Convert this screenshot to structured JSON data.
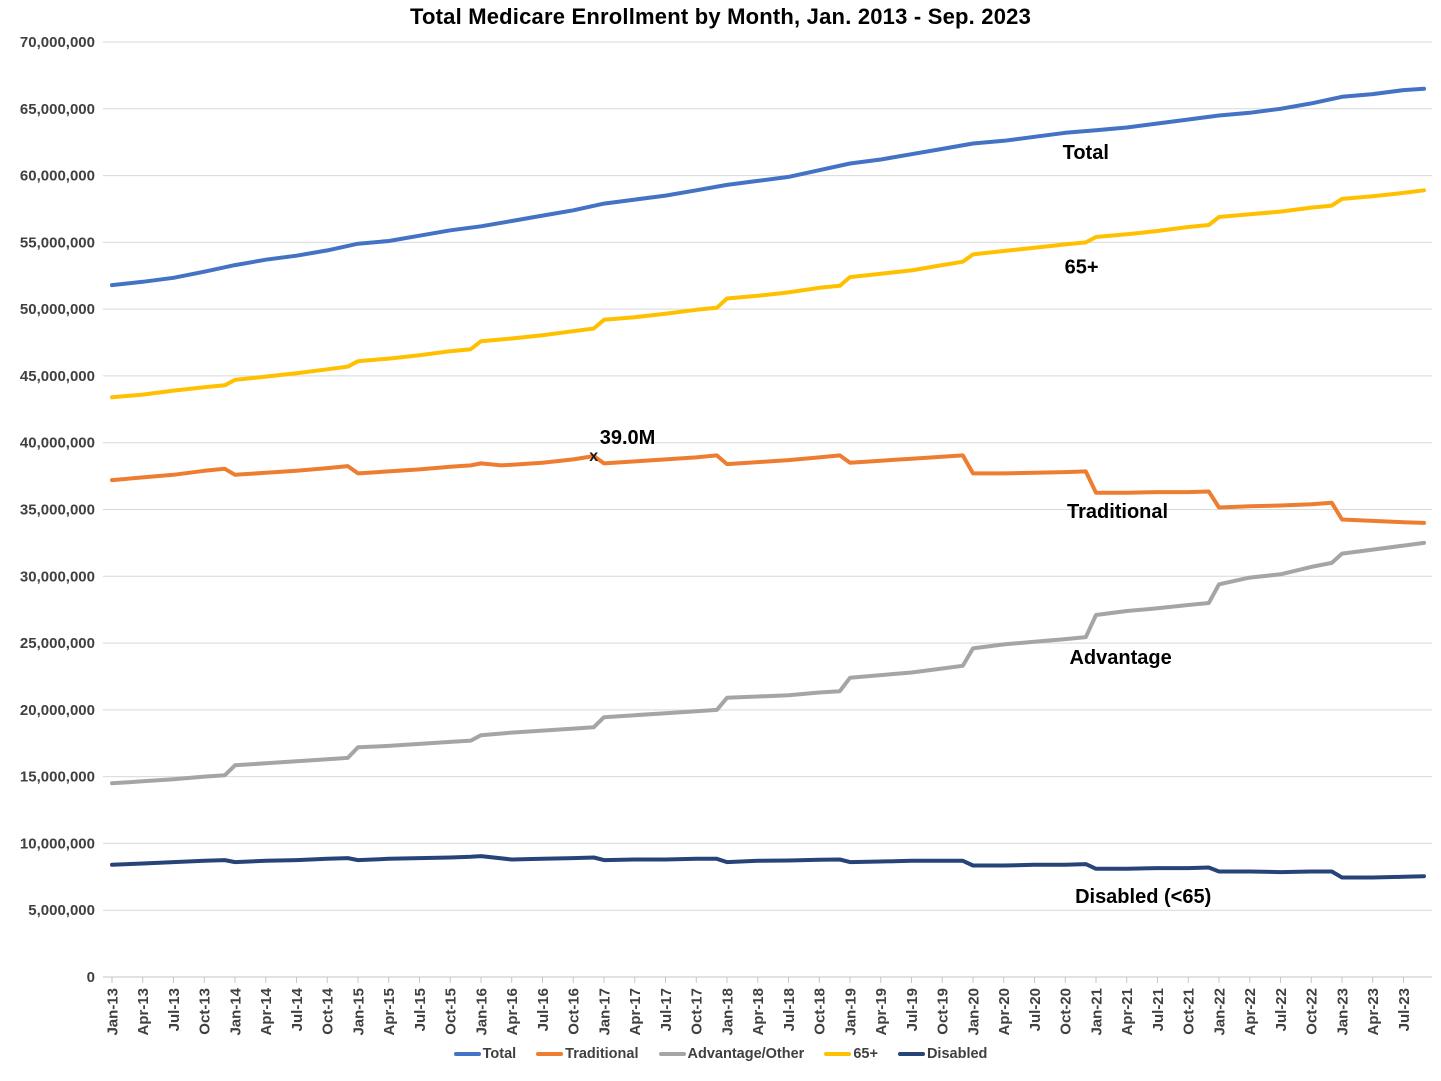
{
  "title": "Total Medicare Enrollment by Month, Jan. 2013 - Sep. 2023",
  "chart_data": {
    "type": "line",
    "title": "Total Medicare Enrollment by Month, Jan. 2013 - Sep. 2023",
    "unit": "enrollees",
    "values_in": "millions",
    "grid": "horizontal",
    "legend_position": "bottom",
    "ylim": [
      0,
      70000000
    ],
    "y_tick_step": 5000000,
    "y_tick_labels": [
      "0",
      "5,000,000",
      "10,000,000",
      "15,000,000",
      "20,000,000",
      "25,000,000",
      "30,000,000",
      "35,000,000",
      "40,000,000",
      "45,000,000",
      "50,000,000",
      "55,000,000",
      "60,000,000",
      "65,000,000",
      "70,000,000"
    ],
    "x_tick_labels": [
      "Jan-13",
      "Apr-13",
      "Jul-13",
      "Oct-13",
      "Jan-14",
      "Apr-14",
      "Jul-14",
      "Oct-14",
      "Jan-15",
      "Apr-15",
      "Jul-15",
      "Oct-15",
      "Jan-16",
      "Apr-16",
      "Jul-16",
      "Oct-16",
      "Jan-17",
      "Apr-17",
      "Jul-17",
      "Oct-17",
      "Jan-18",
      "Apr-18",
      "Jul-18",
      "Oct-18",
      "Jan-19",
      "Apr-19",
      "Jul-19",
      "Oct-19",
      "Jan-20",
      "Apr-20",
      "Jul-20",
      "Oct-20",
      "Jan-21",
      "Apr-21",
      "Jul-21",
      "Oct-21",
      "Jan-22",
      "Apr-22",
      "Jul-22",
      "Oct-22",
      "Jan-23",
      "Apr-23",
      "Jul-23"
    ],
    "months_per_tick": 3,
    "x_month_span": 128,
    "x_range_note": "monthly data Jan-2013 (month 0) through Sep-2023 (month 128)",
    "series": [
      {
        "name": "Total",
        "color": "#4472C4",
        "points": [
          [
            0,
            51.8
          ],
          [
            3,
            52.05
          ],
          [
            6,
            52.35
          ],
          [
            9,
            52.8
          ],
          [
            12,
            53.3
          ],
          [
            15,
            53.7
          ],
          [
            18,
            54.0
          ],
          [
            21,
            54.4
          ],
          [
            24,
            54.9
          ],
          [
            27,
            55.1
          ],
          [
            30,
            55.5
          ],
          [
            33,
            55.9
          ],
          [
            36,
            56.2
          ],
          [
            39,
            56.6
          ],
          [
            42,
            57.0
          ],
          [
            45,
            57.4
          ],
          [
            48,
            57.9
          ],
          [
            51,
            58.2
          ],
          [
            54,
            58.5
          ],
          [
            57,
            58.9
          ],
          [
            60,
            59.3
          ],
          [
            63,
            59.6
          ],
          [
            66,
            59.9
          ],
          [
            69,
            60.4
          ],
          [
            72,
            60.9
          ],
          [
            75,
            61.2
          ],
          [
            78,
            61.6
          ],
          [
            81,
            62.0
          ],
          [
            84,
            62.4
          ],
          [
            87,
            62.6
          ],
          [
            90,
            62.9
          ],
          [
            93,
            63.2
          ],
          [
            96,
            63.4
          ],
          [
            99,
            63.6
          ],
          [
            102,
            63.9
          ],
          [
            105,
            64.2
          ],
          [
            108,
            64.5
          ],
          [
            111,
            64.7
          ],
          [
            114,
            65.0
          ],
          [
            117,
            65.4
          ],
          [
            120,
            65.9
          ],
          [
            123,
            66.1
          ],
          [
            126,
            66.4
          ],
          [
            128,
            66.5
          ]
        ]
      },
      {
        "name": "Traditional",
        "color": "#ED7D31",
        "points": [
          [
            0,
            37.2
          ],
          [
            3,
            37.4
          ],
          [
            6,
            37.6
          ],
          [
            9,
            37.9
          ],
          [
            11,
            38.05
          ],
          [
            12,
            37.6
          ],
          [
            15,
            37.75
          ],
          [
            18,
            37.9
          ],
          [
            21,
            38.1
          ],
          [
            23,
            38.25
          ],
          [
            24,
            37.7
          ],
          [
            27,
            37.85
          ],
          [
            30,
            38.0
          ],
          [
            33,
            38.2
          ],
          [
            35,
            38.3
          ],
          [
            36,
            38.45
          ],
          [
            38,
            38.3
          ],
          [
            42,
            38.5
          ],
          [
            45,
            38.75
          ],
          [
            47,
            39.0
          ],
          [
            48,
            38.45
          ],
          [
            51,
            38.6
          ],
          [
            54,
            38.75
          ],
          [
            57,
            38.9
          ],
          [
            59,
            39.05
          ],
          [
            60,
            38.4
          ],
          [
            63,
            38.55
          ],
          [
            66,
            38.7
          ],
          [
            69,
            38.9
          ],
          [
            71,
            39.05
          ],
          [
            72,
            38.5
          ],
          [
            75,
            38.65
          ],
          [
            78,
            38.8
          ],
          [
            81,
            38.95
          ],
          [
            83,
            39.05
          ],
          [
            84,
            37.7
          ],
          [
            87,
            37.7
          ],
          [
            90,
            37.75
          ],
          [
            93,
            37.8
          ],
          [
            95,
            37.85
          ],
          [
            96,
            36.25
          ],
          [
            99,
            36.25
          ],
          [
            102,
            36.3
          ],
          [
            105,
            36.3
          ],
          [
            107,
            36.35
          ],
          [
            108,
            35.15
          ],
          [
            111,
            35.25
          ],
          [
            114,
            35.3
          ],
          [
            117,
            35.4
          ],
          [
            119,
            35.5
          ],
          [
            120,
            34.25
          ],
          [
            123,
            34.15
          ],
          [
            126,
            34.05
          ],
          [
            128,
            34.0
          ]
        ]
      },
      {
        "name": "Advantage/Other",
        "color": "#A5A5A5",
        "points": [
          [
            0,
            14.5
          ],
          [
            3,
            14.65
          ],
          [
            6,
            14.8
          ],
          [
            9,
            15.0
          ],
          [
            11,
            15.1
          ],
          [
            12,
            15.85
          ],
          [
            15,
            16.0
          ],
          [
            18,
            16.15
          ],
          [
            21,
            16.3
          ],
          [
            23,
            16.4
          ],
          [
            24,
            17.2
          ],
          [
            27,
            17.3
          ],
          [
            30,
            17.45
          ],
          [
            33,
            17.6
          ],
          [
            35,
            17.7
          ],
          [
            36,
            18.1
          ],
          [
            39,
            18.3
          ],
          [
            42,
            18.45
          ],
          [
            45,
            18.6
          ],
          [
            47,
            18.7
          ],
          [
            48,
            19.45
          ],
          [
            51,
            19.6
          ],
          [
            54,
            19.75
          ],
          [
            57,
            19.9
          ],
          [
            59,
            20.0
          ],
          [
            60,
            20.9
          ],
          [
            63,
            21.0
          ],
          [
            66,
            21.1
          ],
          [
            69,
            21.3
          ],
          [
            71,
            21.4
          ],
          [
            72,
            22.4
          ],
          [
            75,
            22.6
          ],
          [
            78,
            22.8
          ],
          [
            81,
            23.1
          ],
          [
            83,
            23.3
          ],
          [
            84,
            24.6
          ],
          [
            87,
            24.9
          ],
          [
            90,
            25.1
          ],
          [
            93,
            25.3
          ],
          [
            95,
            25.45
          ],
          [
            96,
            27.1
          ],
          [
            99,
            27.4
          ],
          [
            102,
            27.6
          ],
          [
            105,
            27.85
          ],
          [
            107,
            28.0
          ],
          [
            108,
            29.4
          ],
          [
            111,
            29.9
          ],
          [
            114,
            30.15
          ],
          [
            117,
            30.7
          ],
          [
            119,
            31.0
          ],
          [
            120,
            31.7
          ],
          [
            123,
            32.0
          ],
          [
            126,
            32.3
          ],
          [
            128,
            32.5
          ]
        ]
      },
      {
        "name": "65+",
        "color": "#FFC000",
        "points": [
          [
            0,
            43.4
          ],
          [
            3,
            43.6
          ],
          [
            6,
            43.9
          ],
          [
            9,
            44.15
          ],
          [
            11,
            44.3
          ],
          [
            12,
            44.7
          ],
          [
            15,
            44.95
          ],
          [
            18,
            45.2
          ],
          [
            21,
            45.5
          ],
          [
            23,
            45.7
          ],
          [
            24,
            46.1
          ],
          [
            27,
            46.3
          ],
          [
            30,
            46.55
          ],
          [
            33,
            46.85
          ],
          [
            35,
            47.0
          ],
          [
            36,
            47.6
          ],
          [
            39,
            47.8
          ],
          [
            42,
            48.05
          ],
          [
            45,
            48.35
          ],
          [
            47,
            48.55
          ],
          [
            48,
            49.2
          ],
          [
            51,
            49.4
          ],
          [
            54,
            49.65
          ],
          [
            57,
            49.95
          ],
          [
            59,
            50.1
          ],
          [
            60,
            50.8
          ],
          [
            63,
            51.0
          ],
          [
            66,
            51.25
          ],
          [
            69,
            51.6
          ],
          [
            71,
            51.75
          ],
          [
            72,
            52.4
          ],
          [
            75,
            52.65
          ],
          [
            78,
            52.9
          ],
          [
            81,
            53.3
          ],
          [
            83,
            53.55
          ],
          [
            84,
            54.1
          ],
          [
            87,
            54.35
          ],
          [
            90,
            54.6
          ],
          [
            93,
            54.85
          ],
          [
            95,
            55.0
          ],
          [
            96,
            55.4
          ],
          [
            99,
            55.6
          ],
          [
            102,
            55.85
          ],
          [
            105,
            56.15
          ],
          [
            107,
            56.3
          ],
          [
            108,
            56.9
          ],
          [
            111,
            57.1
          ],
          [
            114,
            57.3
          ],
          [
            117,
            57.6
          ],
          [
            119,
            57.75
          ],
          [
            120,
            58.25
          ],
          [
            123,
            58.45
          ],
          [
            126,
            58.7
          ],
          [
            128,
            58.9
          ]
        ]
      },
      {
        "name": "Disabled",
        "color": "#264478",
        "points": [
          [
            0,
            8.4
          ],
          [
            3,
            8.5
          ],
          [
            6,
            8.6
          ],
          [
            9,
            8.7
          ],
          [
            11,
            8.75
          ],
          [
            12,
            8.6
          ],
          [
            15,
            8.7
          ],
          [
            18,
            8.75
          ],
          [
            21,
            8.85
          ],
          [
            23,
            8.9
          ],
          [
            24,
            8.75
          ],
          [
            27,
            8.85
          ],
          [
            30,
            8.9
          ],
          [
            33,
            8.95
          ],
          [
            35,
            9.0
          ],
          [
            36,
            9.05
          ],
          [
            39,
            8.8
          ],
          [
            42,
            8.85
          ],
          [
            45,
            8.9
          ],
          [
            47,
            8.95
          ],
          [
            48,
            8.75
          ],
          [
            51,
            8.8
          ],
          [
            54,
            8.8
          ],
          [
            57,
            8.85
          ],
          [
            59,
            8.85
          ],
          [
            60,
            8.6
          ],
          [
            63,
            8.7
          ],
          [
            66,
            8.72
          ],
          [
            69,
            8.78
          ],
          [
            71,
            8.8
          ],
          [
            72,
            8.6
          ],
          [
            75,
            8.65
          ],
          [
            78,
            8.7
          ],
          [
            81,
            8.7
          ],
          [
            83,
            8.7
          ],
          [
            84,
            8.35
          ],
          [
            87,
            8.35
          ],
          [
            90,
            8.4
          ],
          [
            93,
            8.4
          ],
          [
            95,
            8.45
          ],
          [
            96,
            8.1
          ],
          [
            99,
            8.1
          ],
          [
            102,
            8.15
          ],
          [
            105,
            8.15
          ],
          [
            107,
            8.2
          ],
          [
            108,
            7.9
          ],
          [
            111,
            7.9
          ],
          [
            114,
            7.85
          ],
          [
            117,
            7.9
          ],
          [
            119,
            7.9
          ],
          [
            120,
            7.45
          ],
          [
            123,
            7.45
          ],
          [
            126,
            7.5
          ],
          [
            128,
            7.55
          ]
        ]
      }
    ],
    "series_labels_on_chart": [
      {
        "text": "Total",
        "month": 95,
        "value_millions": 61.7
      },
      {
        "text": "65+",
        "month": 94.6,
        "value_millions": 53.1
      },
      {
        "text": "Traditional",
        "month": 98.1,
        "value_millions": 34.8
      },
      {
        "text": "Advantage",
        "month": 98.4,
        "value_millions": 23.9
      },
      {
        "text": "Disabled (<65)",
        "month": 100.6,
        "value_millions": 6.0
      }
    ],
    "annotation": {
      "text": "39.0M",
      "marker": "x",
      "series": "Traditional",
      "month_label": "Dec-16",
      "month": 47,
      "value_millions": 39.0
    }
  },
  "legend": {
    "items": [
      {
        "label": "Total",
        "color": "#4472C4"
      },
      {
        "label": "Traditional",
        "color": "#ED7D31"
      },
      {
        "label": "Advantage/Other",
        "color": "#A5A5A5"
      },
      {
        "label": "65+",
        "color": "#FFC000"
      },
      {
        "label": "Disabled",
        "color": "#264478"
      }
    ]
  },
  "style": {
    "gridline_color": "#D9D9D9",
    "axis_line_color": "#C6C6C6",
    "tick_mark_color": "#C6C6C6",
    "axis_text_color": "#404040"
  }
}
